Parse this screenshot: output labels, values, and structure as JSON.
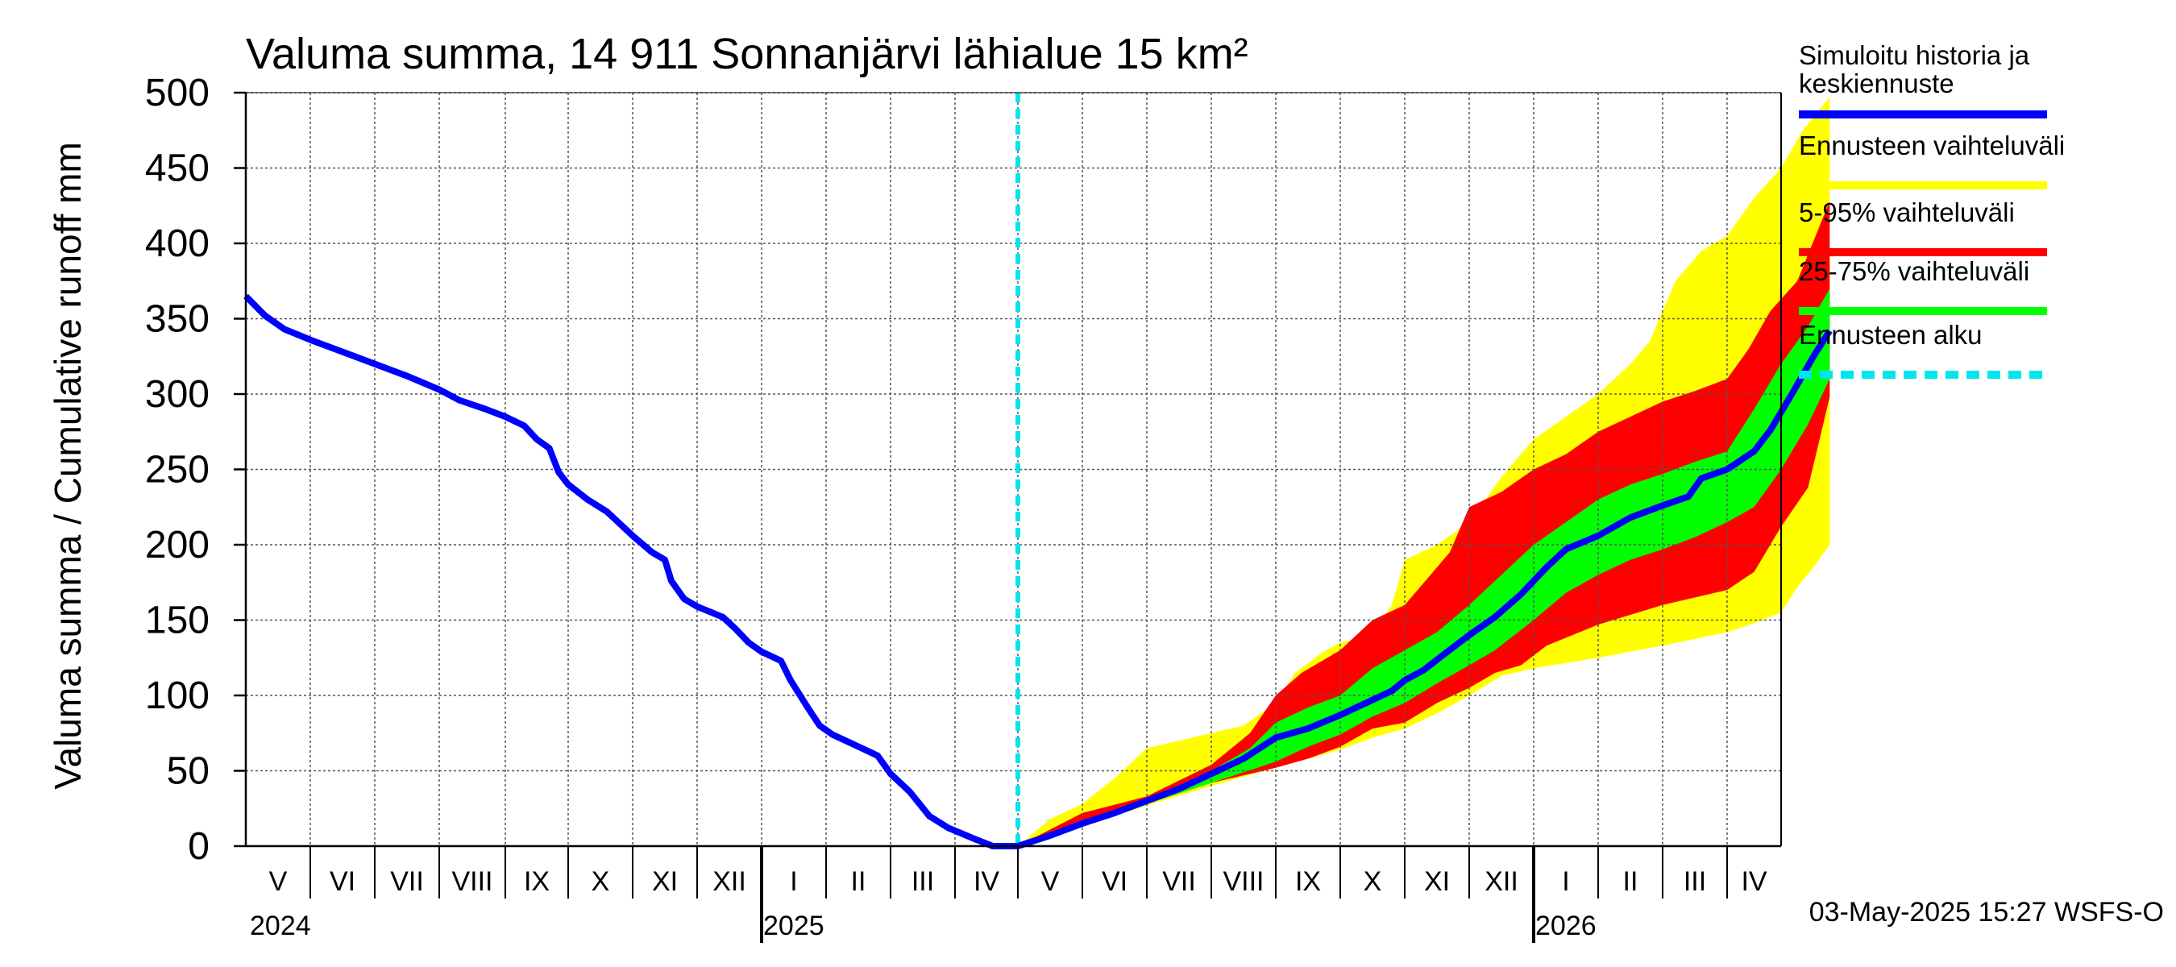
{
  "chart_data": {
    "type": "area",
    "title": "Valuma summa, 14 911 Sonnanjärvi lähialue 15 km²",
    "ylabel": "Valuma summa / Cumulative runoff    mm",
    "ylim": [
      0,
      500
    ],
    "yticks": [
      "0",
      "50",
      "100",
      "150",
      "200",
      "250",
      "300",
      "350",
      "400",
      "450",
      "500"
    ],
    "month_labels": [
      "V",
      "VI",
      "VII",
      "VIII",
      "IX",
      "X",
      "XI",
      "XII",
      "I",
      "II",
      "III",
      "IV",
      "V",
      "VI",
      "VII",
      "VIII",
      "IX",
      "X",
      "XI",
      "XII",
      "I",
      "II",
      "III",
      "IV"
    ],
    "year_labels": [
      "2024",
      "2025",
      "2026"
    ],
    "timestamp": "03-May-2025 15:27 WSFS-O",
    "colors": {
      "history": "#0000ff",
      "ennuste": "#ffff00",
      "p5_95": "#ff0000",
      "p25_75": "#00ff00",
      "alku": "#00e5ee"
    },
    "legend": [
      {
        "label": "Simuloitu historia ja",
        "label2": "keskiennuste",
        "color": "#0000ff",
        "style": "solid"
      },
      {
        "label": "Ennusteen vaihteluväli",
        "label2": "",
        "color": "#ffff00",
        "style": "solid"
      },
      {
        "label": "5-95% vaihteluväli",
        "label2": "",
        "color": "#ff0000",
        "style": "solid"
      },
      {
        "label": "25-75% vaihteluväli",
        "label2": "",
        "color": "#00ff00",
        "style": "solid"
      },
      {
        "label": "Ennusteen alku",
        "label2": "",
        "color": "#00e5ee",
        "style": "dashed"
      }
    ],
    "forecast_start_month": 12,
    "history": [
      [
        0,
        365
      ],
      [
        0.3,
        352
      ],
      [
        0.6,
        343
      ],
      [
        1,
        336
      ],
      [
        1.5,
        328
      ],
      [
        2,
        320
      ],
      [
        2.5,
        312
      ],
      [
        3,
        303
      ],
      [
        3.3,
        296
      ],
      [
        3.7,
        290
      ],
      [
        4,
        285
      ],
      [
        4.3,
        279
      ],
      [
        4.5,
        270
      ],
      [
        4.7,
        264
      ],
      [
        4.85,
        248
      ],
      [
        5,
        240
      ],
      [
        5.3,
        230
      ],
      [
        5.6,
        222
      ],
      [
        5.8,
        214
      ],
      [
        6,
        206
      ],
      [
        6.3,
        195
      ],
      [
        6.5,
        190
      ],
      [
        6.6,
        176
      ],
      [
        6.8,
        164
      ],
      [
        7,
        159
      ],
      [
        7.4,
        152
      ],
      [
        7.6,
        144
      ],
      [
        7.8,
        135
      ],
      [
        8,
        129
      ],
      [
        8.3,
        123
      ],
      [
        8.45,
        110
      ],
      [
        8.7,
        93
      ],
      [
        8.9,
        80
      ],
      [
        9.1,
        74
      ],
      [
        9.4,
        68
      ],
      [
        9.8,
        60
      ],
      [
        10,
        48
      ],
      [
        10.3,
        36
      ],
      [
        10.6,
        20
      ],
      [
        10.9,
        12
      ],
      [
        11.3,
        5
      ],
      [
        11.6,
        0
      ],
      [
        12,
        0
      ]
    ],
    "median": [
      [
        12,
        0
      ],
      [
        12.5,
        7
      ],
      [
        13,
        15
      ],
      [
        13.5,
        22
      ],
      [
        14,
        30
      ],
      [
        14.5,
        38
      ],
      [
        15,
        48
      ],
      [
        15.5,
        58
      ],
      [
        16,
        72
      ],
      [
        16.5,
        78
      ],
      [
        17,
        87
      ],
      [
        17.5,
        97
      ],
      [
        17.8,
        103
      ],
      [
        18,
        110
      ],
      [
        18.3,
        117
      ],
      [
        18.6,
        127
      ],
      [
        19,
        140
      ],
      [
        19.4,
        152
      ],
      [
        19.8,
        167
      ],
      [
        20.2,
        185
      ],
      [
        20.5,
        197
      ],
      [
        21,
        206
      ],
      [
        21.5,
        218
      ],
      [
        22,
        226
      ],
      [
        22.4,
        232
      ],
      [
        22.6,
        244
      ],
      [
        23,
        250
      ],
      [
        23.5,
        262
      ],
      [
        23.8,
        276
      ],
      [
        24.2,
        300
      ],
      [
        24.6,
        325
      ],
      [
        24.9,
        342
      ]
    ],
    "band_5_95": {
      "upper": [
        [
          12,
          0
        ],
        [
          13,
          22
        ],
        [
          14,
          33
        ],
        [
          15,
          54
        ],
        [
          15.6,
          75
        ],
        [
          16,
          100
        ],
        [
          16.4,
          115
        ],
        [
          17,
          130
        ],
        [
          17.5,
          150
        ],
        [
          18,
          160
        ],
        [
          18.3,
          175
        ],
        [
          18.7,
          195
        ],
        [
          19,
          225
        ],
        [
          19.5,
          235
        ],
        [
          20,
          250
        ],
        [
          20.5,
          260
        ],
        [
          21,
          275
        ],
        [
          21.5,
          285
        ],
        [
          22,
          295
        ],
        [
          22.5,
          302
        ],
        [
          23,
          310
        ],
        [
          23.4,
          330
        ],
        [
          23.8,
          355
        ],
        [
          24.3,
          375
        ],
        [
          24.9,
          428
        ]
      ],
      "lower": [
        [
          12,
          0
        ],
        [
          13,
          15
        ],
        [
          14,
          28
        ],
        [
          15,
          42
        ],
        [
          16,
          52
        ],
        [
          16.5,
          58
        ],
        [
          17,
          66
        ],
        [
          17.5,
          78
        ],
        [
          18,
          82
        ],
        [
          18.5,
          95
        ],
        [
          19,
          105
        ],
        [
          19.4,
          115
        ],
        [
          19.8,
          120
        ],
        [
          20.2,
          133
        ],
        [
          21,
          147
        ],
        [
          22,
          160
        ],
        [
          23,
          170
        ],
        [
          23.5,
          182
        ],
        [
          24,
          212
        ],
        [
          24.5,
          238
        ],
        [
          24.9,
          298
        ]
      ]
    },
    "band_25_75": {
      "upper": [
        [
          12,
          0
        ],
        [
          13,
          17
        ],
        [
          14,
          31
        ],
        [
          15,
          50
        ],
        [
          15.6,
          65
        ],
        [
          16,
          82
        ],
        [
          16.5,
          92
        ],
        [
          17,
          100
        ],
        [
          17.5,
          118
        ],
        [
          18,
          130
        ],
        [
          18.5,
          142
        ],
        [
          19,
          160
        ],
        [
          19.5,
          180
        ],
        [
          20,
          200
        ],
        [
          20.5,
          215
        ],
        [
          21,
          230
        ],
        [
          21.5,
          240
        ],
        [
          22,
          247
        ],
        [
          22.5,
          255
        ],
        [
          23,
          262
        ],
        [
          23.5,
          290
        ],
        [
          24,
          320
        ],
        [
          24.5,
          345
        ],
        [
          24.9,
          370
        ]
      ],
      "lower": [
        [
          12,
          0
        ],
        [
          13,
          14
        ],
        [
          14,
          28
        ],
        [
          15,
          42
        ],
        [
          16,
          56
        ],
        [
          16.5,
          66
        ],
        [
          17,
          74
        ],
        [
          17.5,
          86
        ],
        [
          18,
          95
        ],
        [
          18.5,
          108
        ],
        [
          19,
          120
        ],
        [
          19.4,
          130
        ],
        [
          20,
          150
        ],
        [
          20.5,
          168
        ],
        [
          21,
          180
        ],
        [
          21.5,
          190
        ],
        [
          22,
          197
        ],
        [
          22.5,
          205
        ],
        [
          23,
          215
        ],
        [
          23.5,
          225
        ],
        [
          24,
          250
        ],
        [
          24.5,
          280
        ],
        [
          24.9,
          310
        ]
      ]
    },
    "band_range": {
      "upper": [
        [
          12,
          0
        ],
        [
          12.5,
          18
        ],
        [
          13,
          28
        ],
        [
          13.5,
          45
        ],
        [
          14,
          65
        ],
        [
          15,
          75
        ],
        [
          15.5,
          80
        ],
        [
          16,
          95
        ],
        [
          16.3,
          115
        ],
        [
          16.7,
          128
        ],
        [
          17,
          135
        ],
        [
          17.5,
          140
        ],
        [
          17.8,
          160
        ],
        [
          18,
          190
        ],
        [
          18.5,
          200
        ],
        [
          19,
          215
        ],
        [
          19.5,
          245
        ],
        [
          20,
          270
        ],
        [
          20.5,
          285
        ],
        [
          21,
          300
        ],
        [
          21.5,
          320
        ],
        [
          21.8,
          335
        ],
        [
          22.2,
          375
        ],
        [
          22.6,
          395
        ],
        [
          23,
          405
        ],
        [
          23.5,
          430
        ],
        [
          24,
          450
        ],
        [
          24.4,
          475
        ],
        [
          24.9,
          497
        ]
      ],
      "lower": [
        [
          12,
          0
        ],
        [
          13,
          13
        ],
        [
          14,
          27
        ],
        [
          15,
          40
        ],
        [
          16,
          52
        ],
        [
          17,
          64
        ],
        [
          17.5,
          72
        ],
        [
          18,
          78
        ],
        [
          18.5,
          88
        ],
        [
          19,
          100
        ],
        [
          19.5,
          113
        ],
        [
          20,
          118
        ],
        [
          21,
          125
        ],
        [
          22,
          133
        ],
        [
          23,
          142
        ],
        [
          23.5,
          148
        ],
        [
          24,
          155
        ],
        [
          24.3,
          172
        ],
        [
          24.6,
          185
        ],
        [
          24.9,
          200
        ]
      ]
    }
  }
}
